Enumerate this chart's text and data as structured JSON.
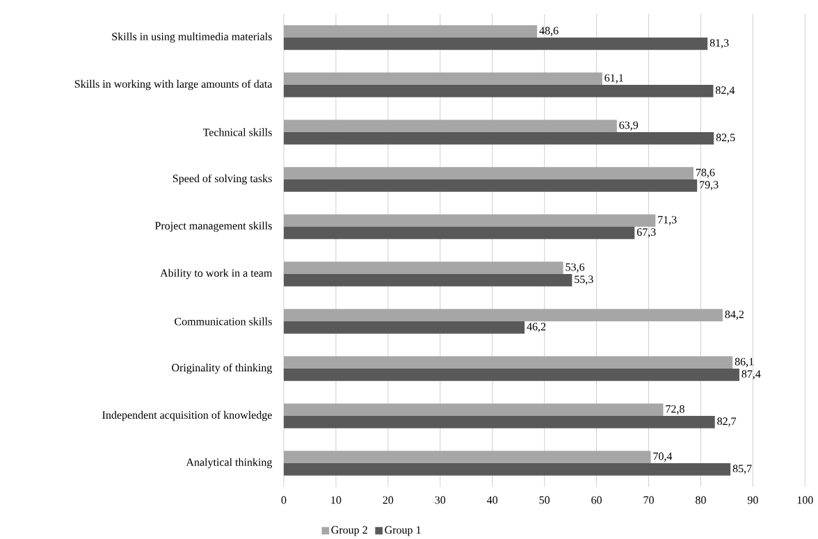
{
  "chart_data": {
    "type": "bar",
    "orientation": "horizontal",
    "categories": [
      "Skills in using multimedia materials",
      "Skills in working with large amounts of data",
      "Technical skills",
      "Speed of solving tasks",
      "Project management skills",
      "Ability to work in a team",
      "Communication skills",
      "Originality of thinking",
      "Independent acquisition of knowledge",
      "Analytical thinking"
    ],
    "series": [
      {
        "name": "Group 2",
        "color": "#a6a6a6",
        "values": [
          48.6,
          61.1,
          63.9,
          78.6,
          71.3,
          53.6,
          84.2,
          86.1,
          72.8,
          70.4
        ],
        "value_labels": [
          "48,6",
          "61,1",
          "63,9",
          "78,6",
          "71,3",
          "53,6",
          "84,2",
          "86,1",
          "72,8",
          "70,4"
        ]
      },
      {
        "name": "Group 1",
        "color": "#595959",
        "values": [
          81.3,
          82.4,
          82.5,
          79.3,
          67.3,
          55.3,
          46.2,
          87.4,
          82.7,
          85.7
        ],
        "value_labels": [
          "81,3",
          "82,4",
          "82,5",
          "79,3",
          "67,3",
          "55,3",
          "46,2",
          "87,4",
          "82,7",
          "85,7"
        ]
      }
    ],
    "xlim": [
      0,
      100
    ],
    "xticks": [
      0,
      10,
      20,
      30,
      40,
      50,
      60,
      70,
      80,
      90,
      100
    ],
    "grid": "x",
    "legend": "bottom"
  }
}
